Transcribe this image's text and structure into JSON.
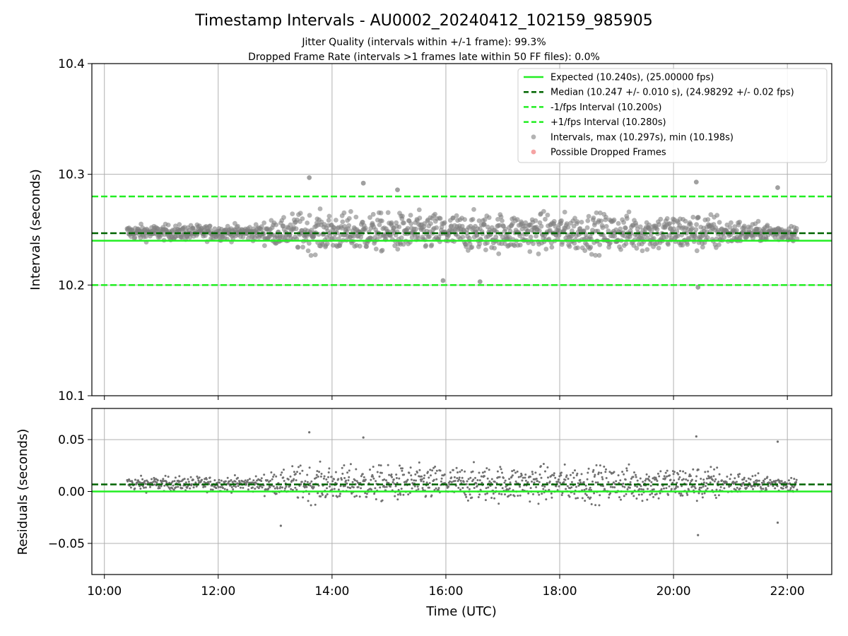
{
  "chart_data": [
    {
      "type": "scatter",
      "panel": "intervals",
      "title": "Timestamp Intervals - AU0002_20240412_102159_985905",
      "subtitle_1": "Jitter Quality (intervals within +/-1 frame): 99.3%",
      "subtitle_2": "Dropped Frame Rate (intervals >1 frames late within 50 FF files): 0.0%",
      "ylabel": "Intervals (seconds)",
      "xlabel": "",
      "x_unit": "hours (UTC)",
      "xlim": [
        9.78,
        22.78
      ],
      "ylim": [
        10.1,
        10.4
      ],
      "yticks": [
        "10.1",
        "10.2",
        "10.3",
        "10.4"
      ],
      "grid": true,
      "legend_position": "top-right",
      "series": [
        {
          "name": "Expected (10.240s), (25.00000 fps)",
          "kind": "hline",
          "y": 10.24,
          "color": "#22ee22",
          "style": "solid"
        },
        {
          "name": "Median (10.247 +/- 0.010 s), (24.98292 +/- 0.02 fps)",
          "kind": "hline",
          "y": 10.2468,
          "color": "#006400",
          "style": "dashed"
        },
        {
          "name": "-1/fps Interval (10.200s)",
          "kind": "hline",
          "y": 10.2,
          "color": "#22ee22",
          "style": "dashed"
        },
        {
          "name": "+1/fps Interval (10.280s)",
          "kind": "hline",
          "y": 10.28,
          "color": "#22ee22",
          "style": "dashed"
        },
        {
          "name": "Intervals, max (10.297s), min (10.198s)",
          "kind": "points",
          "color": "#808080",
          "x_range": [
            10.4,
            22.17
          ],
          "center": 10.2475,
          "max": 10.297,
          "min": 10.198,
          "outliers": [
            [
              13.6,
              10.297
            ],
            [
              20.43,
              10.198
            ],
            [
              14.55,
              10.292
            ],
            [
              20.4,
              10.293
            ],
            [
              21.83,
              10.288
            ],
            [
              15.15,
              10.286
            ],
            [
              16.6,
              10.203
            ],
            [
              15.95,
              10.204
            ]
          ]
        },
        {
          "name": "Possible Dropped Frames",
          "kind": "points",
          "color": "#ee6666",
          "points": []
        }
      ]
    },
    {
      "type": "scatter",
      "panel": "residuals",
      "ylabel": "Residuals (seconds)",
      "xlabel": "Time (UTC)",
      "xlim": [
        9.78,
        22.78
      ],
      "ylim": [
        -0.08,
        0.08
      ],
      "yticks": [
        "−0.05",
        "0.00",
        "0.05"
      ],
      "xticks": [
        "10:00",
        "12:00",
        "14:00",
        "16:00",
        "18:00",
        "20:00",
        "22:00"
      ],
      "grid": true,
      "series": [
        {
          "name": "",
          "kind": "hline",
          "y": 0.0,
          "color": "#22ee22",
          "style": "solid"
        },
        {
          "name": "",
          "kind": "hline",
          "y": 0.0068,
          "color": "#006400",
          "style": "dashed"
        },
        {
          "name": "",
          "kind": "points",
          "color": "#707070",
          "x_range": [
            10.4,
            22.17
          ],
          "center": 0.0075,
          "max": 0.057,
          "min": -0.042,
          "outliers": [
            [
              13.6,
              0.057
            ],
            [
              20.43,
              -0.042
            ],
            [
              14.55,
              0.052
            ],
            [
              20.4,
              0.053
            ],
            [
              21.83,
              0.048
            ],
            [
              13.1,
              -0.033
            ],
            [
              21.83,
              -0.03
            ]
          ]
        }
      ]
    }
  ]
}
